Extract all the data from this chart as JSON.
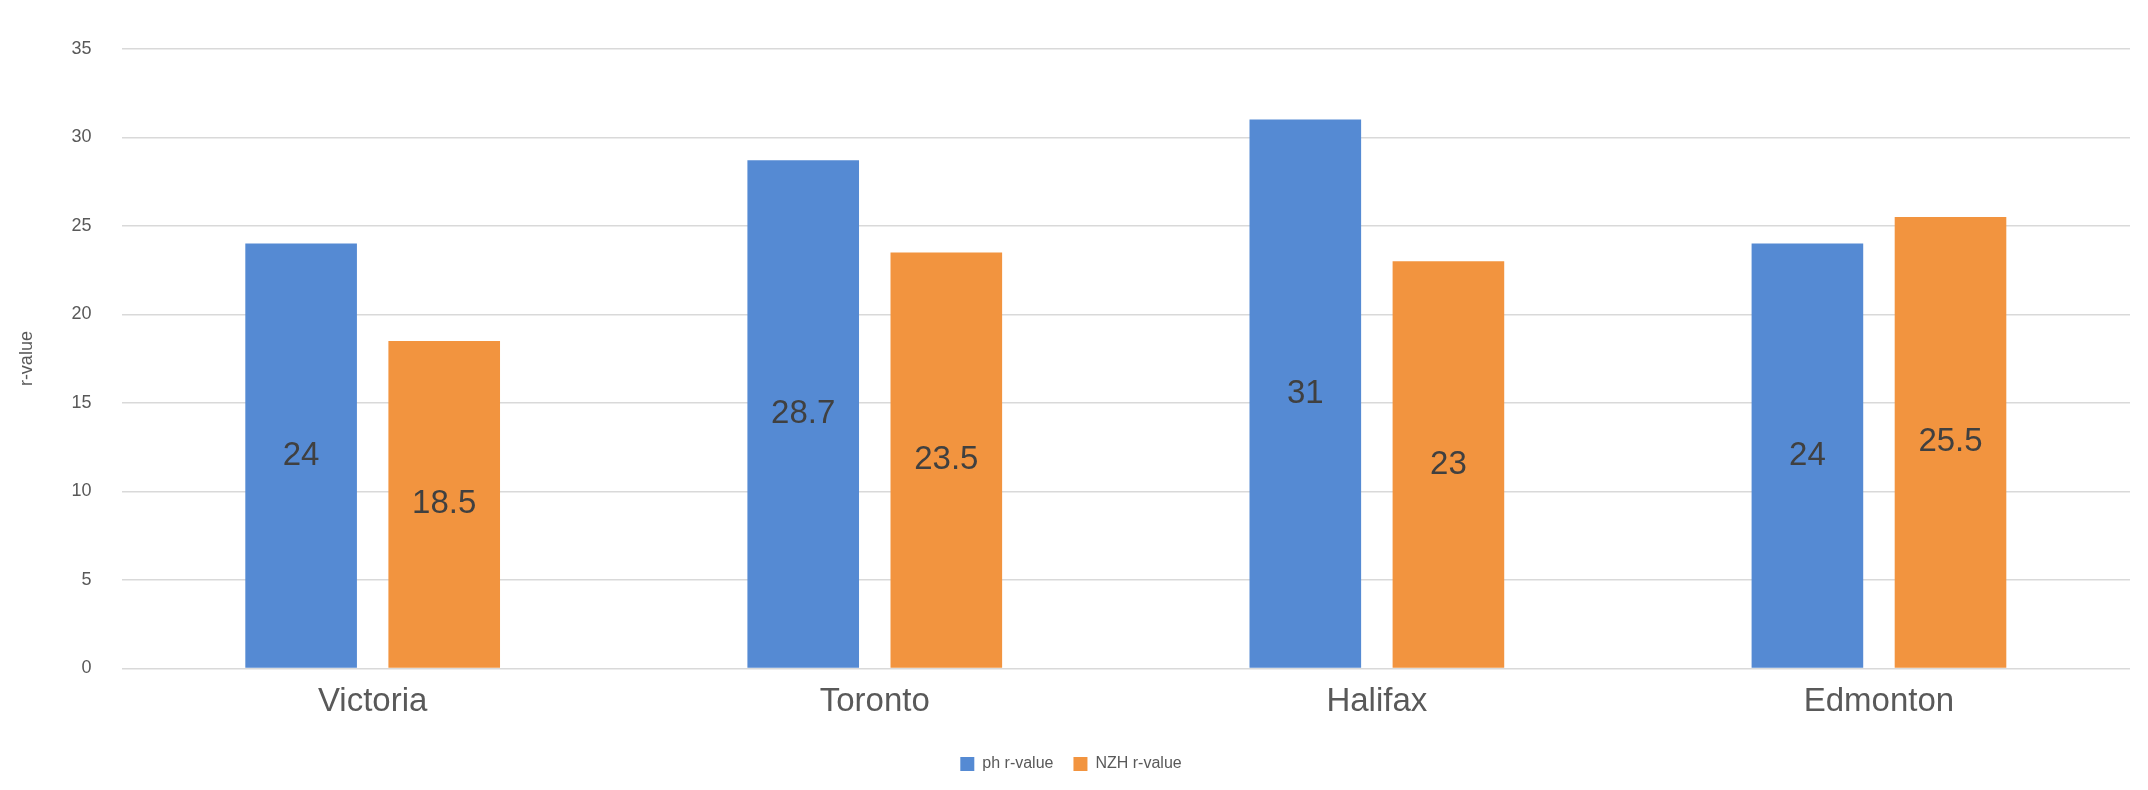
{
  "chart_data": {
    "type": "bar",
    "ylabel": "r-value",
    "categories": [
      "Victoria",
      "Toronto",
      "Halifax",
      "Edmonton"
    ],
    "series": [
      {
        "name": "ph r-value",
        "color": "#558ad3",
        "values": [
          24,
          28.7,
          31,
          24
        ]
      },
      {
        "name": "NZH r-value",
        "color": "#f2943f",
        "values": [
          18.5,
          23.5,
          23,
          25.5
        ]
      }
    ],
    "ylim": [
      0,
      35
    ],
    "yticks": [
      0,
      5,
      10,
      15,
      20,
      25,
      30,
      35
    ],
    "grid": "y",
    "legend": "bottom",
    "data_labels": true
  }
}
